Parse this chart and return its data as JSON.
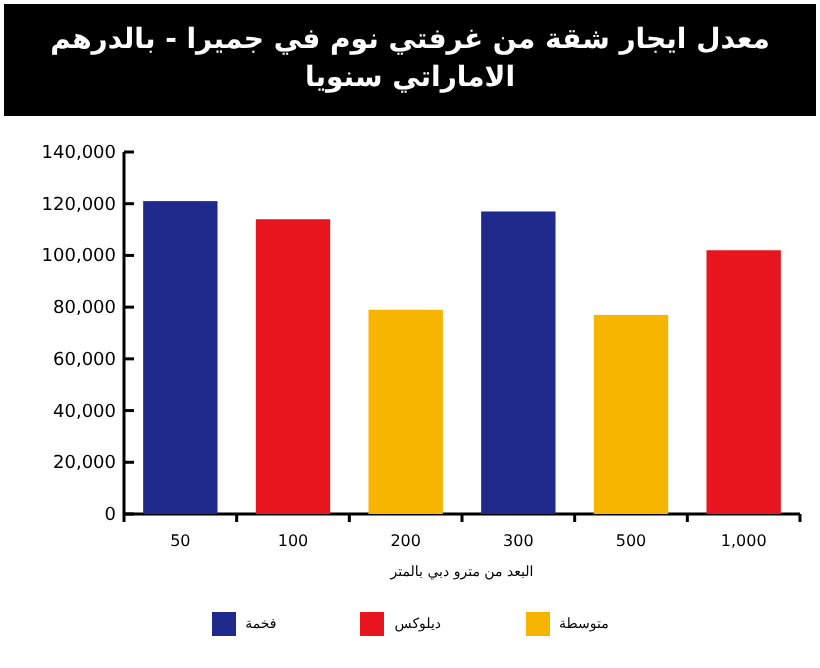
{
  "chart_data": {
    "type": "bar",
    "title": "معدل ايجار شقة من غرفتي نوم في جميرا - بالدرهم الاماراتي سنويا",
    "xlabel": "البعد من مترو دبي بالمتر",
    "categories": [
      "50",
      "100",
      "200",
      "300",
      "500",
      "1,000"
    ],
    "series": [
      {
        "name": "فخمة",
        "color": "#1f2a8c",
        "values": [
          121000,
          null,
          null,
          117000,
          null,
          null
        ]
      },
      {
        "name": "ديلوكس",
        "color": "#e8141e",
        "values": [
          null,
          114000,
          null,
          null,
          null,
          102000
        ]
      },
      {
        "name": "متوسطة",
        "color": "#f7b500",
        "values": [
          null,
          null,
          79000,
          null,
          77000,
          null
        ]
      }
    ],
    "ylim": [
      0,
      140000
    ],
    "yticks": [
      {
        "value": 0,
        "label": "0"
      },
      {
        "value": 20000,
        "label": "20,000"
      },
      {
        "value": 40000,
        "label": "40,000"
      },
      {
        "value": 60000,
        "label": "60,000"
      },
      {
        "value": 80000,
        "label": "80,000"
      },
      {
        "value": 100000,
        "label": "100,000"
      },
      {
        "value": 120000,
        "label": "120,000"
      },
      {
        "value": 140000,
        "label": "140,000"
      }
    ],
    "legend": "bottom"
  }
}
